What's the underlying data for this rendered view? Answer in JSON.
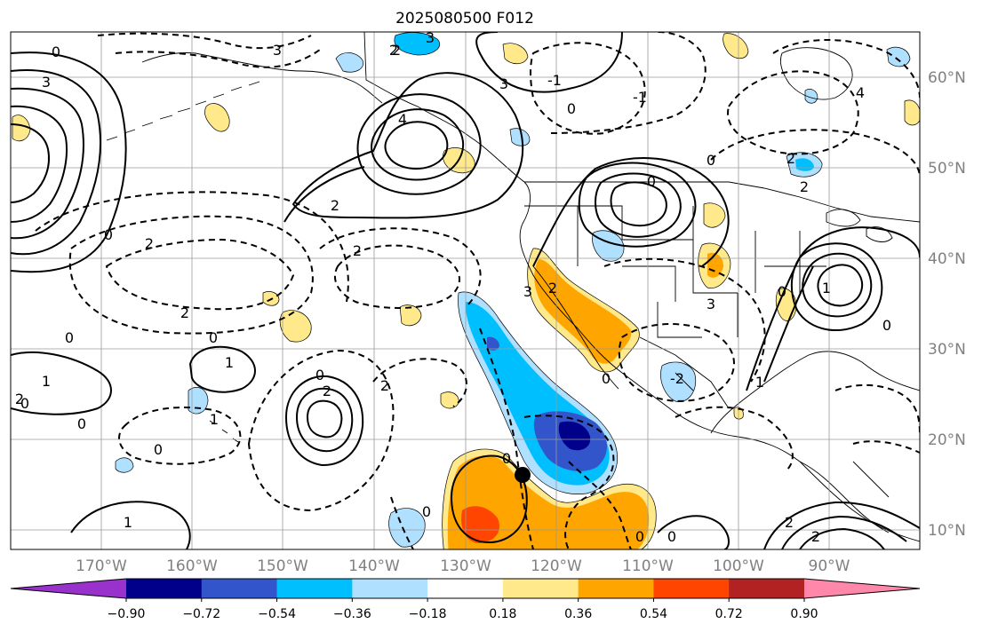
{
  "title": "2025080500 F012",
  "lon_labels": [
    "170°W",
    "160°W",
    "150°W",
    "140°W",
    "130°W",
    "120°W",
    "110°W",
    "100°W",
    "90°W"
  ],
  "lat_labels": [
    "60°N",
    "50°N",
    "40°N",
    "30°N",
    "20°N",
    "10°N"
  ],
  "colorbar": {
    "ticks": [
      "−0.90",
      "−0.72",
      "−0.54",
      "−0.36",
      "−0.18",
      "0.18",
      "0.36",
      "0.54",
      "0.72",
      "0.90"
    ],
    "colors": [
      "#9932cc",
      "#00008b",
      "#3355cc",
      "#00bfff",
      "#b0e0ff",
      "#ffffff",
      "#ffe98a",
      "#ffa500",
      "#ff4500",
      "#b22222",
      "#ff88aa"
    ]
  },
  "contour_labels": [
    "3",
    "3",
    "0",
    "2",
    "0",
    "4",
    "2",
    "0",
    "0",
    "2",
    "0",
    "1",
    "0",
    "2",
    "1",
    "0",
    "2",
    "2",
    "0",
    "2",
    "0",
    "3",
    "2",
    "-1",
    "3",
    "0",
    "0",
    "0",
    "2",
    "-2",
    "1",
    "1",
    "0",
    "3",
    "2",
    "4",
    "-1",
    "0",
    "2",
    "1",
    "0",
    "0",
    "2",
    "2",
    "0",
    "3",
    "1",
    "0",
    "2"
  ],
  "storm_marker": "tropical-cyclone-position"
}
